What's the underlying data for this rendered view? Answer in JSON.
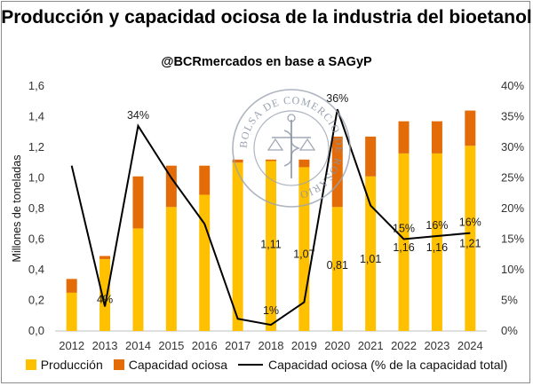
{
  "colors": {
    "produccion": "#FFC000",
    "capacidad_ociosa": "#E36C09",
    "line": "#000000"
  },
  "logo_text": "BOLSA DE COMERCIO DE ROSARIO",
  "chart_data": {
    "type": "bar",
    "title": "Producción y capacidad ociosa de la industria del bioetanol",
    "subtitle": "@BCRmercados en base a SAGyP",
    "ylabel": "Millones de toneladas",
    "ylim": [
      0,
      1.6
    ],
    "y2lim": [
      0,
      0.4
    ],
    "yticks": [
      "0,0",
      "0,2",
      "0,4",
      "0,6",
      "0,8",
      "1,0",
      "1,2",
      "1,4",
      "1,6"
    ],
    "y2ticks": [
      "0%",
      "5%",
      "10%",
      "15%",
      "20%",
      "25%",
      "30%",
      "35%",
      "40%"
    ],
    "categories": [
      "2012",
      "2013",
      "2014",
      "2015",
      "2016",
      "2017",
      "2018",
      "2019",
      "2020",
      "2021",
      "2022",
      "2023",
      "2024"
    ],
    "series": [
      {
        "name": "Producción",
        "kind": "bar",
        "values": [
          0.25,
          0.47,
          0.67,
          0.81,
          0.89,
          1.1,
          1.11,
          1.07,
          0.81,
          1.01,
          1.16,
          1.16,
          1.21
        ]
      },
      {
        "name": "Capacidad ociosa",
        "kind": "bar",
        "values": [
          0.09,
          0.02,
          0.34,
          0.27,
          0.19,
          0.02,
          0.01,
          0.05,
          0.46,
          0.26,
          0.21,
          0.21,
          0.23
        ]
      },
      {
        "name": "Capacidad ociosa (% de la capacidad total)",
        "kind": "line",
        "axis": "right",
        "values": [
          0.27,
          0.04,
          0.335,
          0.25,
          0.175,
          0.02,
          0.01,
          0.047,
          0.362,
          0.205,
          0.15,
          0.155,
          0.16
        ]
      }
    ],
    "bar_labels": [
      {
        "index": 6,
        "text": "1,11"
      },
      {
        "index": 7,
        "text": "1,07"
      },
      {
        "index": 8,
        "text": "0,81"
      },
      {
        "index": 9,
        "text": "1,01"
      },
      {
        "index": 10,
        "text": "1,16"
      },
      {
        "index": 11,
        "text": "1,16"
      },
      {
        "index": 12,
        "text": "1,21"
      }
    ],
    "line_labels": [
      {
        "index": 1,
        "text": "4%"
      },
      {
        "index": 2,
        "text": "34%"
      },
      {
        "index": 6,
        "text": "1%"
      },
      {
        "index": 8,
        "text": "36%"
      },
      {
        "index": 10,
        "text": "15%"
      },
      {
        "index": 11,
        "text": "16%"
      },
      {
        "index": 12,
        "text": "16%"
      }
    ],
    "legend_position": "bottom",
    "grid": false
  }
}
